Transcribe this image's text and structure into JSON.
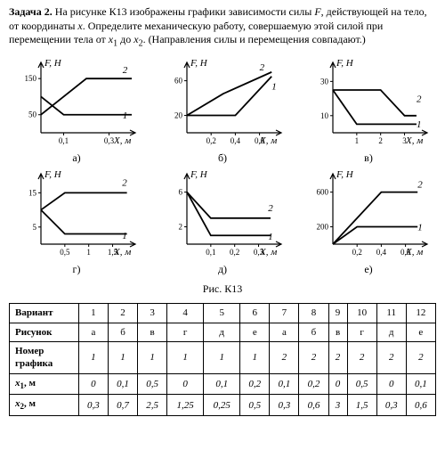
{
  "problem": {
    "heading": "Задача 2.",
    "body_html": "На рисунке К13 изображены графики зависимости силы <i>F</i>, действующей на тело, от координаты <i>x</i>. Определите механическую работу, совершаемую этой силой при перемещении тела от <i>x</i><sub>1</sub> до <i>x</i><sub>2</sub>. (Направления силы и перемещения совпадают.)"
  },
  "fig_caption": "Рис. К13",
  "charts": {
    "axis_y_label": "F, Н",
    "axis_x_label": "X, м",
    "colors": {
      "line": "#000000",
      "bg": "#ffffff"
    },
    "cells": [
      {
        "id": "a",
        "label": "а)",
        "yticks": [
          50,
          150
        ],
        "xticks": [
          "0,1",
          "0,3"
        ],
        "xmax": 0.4,
        "ymax": 180,
        "curves": [
          {
            "num": "1",
            "pts": [
              [
                0,
                100
              ],
              [
                0.1,
                50
              ],
              [
                0.4,
                50
              ]
            ],
            "lab_xy": [
              0.36,
              40
            ]
          },
          {
            "num": "2",
            "pts": [
              [
                0,
                50
              ],
              [
                0.2,
                150
              ],
              [
                0.4,
                150
              ]
            ],
            "lab_xy": [
              0.36,
              165
            ]
          }
        ]
      },
      {
        "id": "b",
        "label": "б)",
        "yticks": [
          20,
          60
        ],
        "xticks": [
          "0,2",
          "0,4",
          "0,6"
        ],
        "xmax": 0.75,
        "ymax": 75,
        "curves": [
          {
            "num": "1",
            "pts": [
              [
                0,
                20
              ],
              [
                0.4,
                20
              ],
              [
                0.7,
                65
              ]
            ],
            "lab_xy": [
              0.7,
              50
            ]
          },
          {
            "num": "2",
            "pts": [
              [
                0,
                20
              ],
              [
                0.3,
                45
              ],
              [
                0.7,
                70
              ]
            ],
            "lab_xy": [
              0.6,
              72
            ]
          }
        ]
      },
      {
        "id": "v",
        "label": "в)",
        "yticks": [
          10,
          30
        ],
        "xticks": [
          "1",
          "2",
          "3"
        ],
        "xmax": 3.8,
        "ymax": 38,
        "curves": [
          {
            "num": "1",
            "pts": [
              [
                0,
                25
              ],
              [
                1,
                5
              ],
              [
                3.5,
                5
              ]
            ],
            "lab_xy": [
              3.5,
              3
            ]
          },
          {
            "num": "2",
            "pts": [
              [
                0,
                25
              ],
              [
                2,
                25
              ],
              [
                3,
                10
              ],
              [
                3.5,
                10
              ]
            ],
            "lab_xy": [
              3.5,
              18
            ]
          }
        ]
      },
      {
        "id": "g",
        "label": "г)",
        "yticks": [
          5,
          15
        ],
        "xticks": [
          "0,5",
          "1",
          "1,5"
        ],
        "xmax": 1.9,
        "ymax": 19,
        "curves": [
          {
            "num": "1",
            "pts": [
              [
                0,
                10
              ],
              [
                0.5,
                3
              ],
              [
                1.8,
                3
              ]
            ],
            "lab_xy": [
              1.7,
              1.5
            ]
          },
          {
            "num": "2",
            "pts": [
              [
                0,
                10
              ],
              [
                0.5,
                15
              ],
              [
                1.8,
                15
              ]
            ],
            "lab_xy": [
              1.7,
              17
            ]
          }
        ]
      },
      {
        "id": "d",
        "label": "д)",
        "yticks": [
          2,
          6
        ],
        "xticks": [
          "0,1",
          "0,2",
          "0,3"
        ],
        "xmax": 0.38,
        "ymax": 7.5,
        "curves": [
          {
            "num": "1",
            "pts": [
              [
                0,
                6
              ],
              [
                0.1,
                1
              ],
              [
                0.35,
                1
              ]
            ],
            "lab_xy": [
              0.34,
              0.5
            ]
          },
          {
            "num": "2",
            "pts": [
              [
                0,
                6
              ],
              [
                0.1,
                3
              ],
              [
                0.25,
                3
              ],
              [
                0.35,
                3
              ]
            ],
            "lab_xy": [
              0.34,
              3.8
            ]
          }
        ]
      },
      {
        "id": "e",
        "label": "е)",
        "yticks": [
          200,
          600
        ],
        "xticks": [
          "0,2",
          "0,4",
          "0,6"
        ],
        "xmax": 0.75,
        "ymax": 750,
        "curves": [
          {
            "num": "1",
            "pts": [
              [
                0,
                0
              ],
              [
                0.2,
                200
              ],
              [
                0.7,
                200
              ]
            ],
            "lab_xy": [
              0.7,
              160
            ]
          },
          {
            "num": "2",
            "pts": [
              [
                0,
                0
              ],
              [
                0.4,
                600
              ],
              [
                0.7,
                600
              ]
            ],
            "lab_xy": [
              0.7,
              650
            ]
          }
        ]
      }
    ]
  },
  "table": {
    "headers": [
      "Вариант",
      "1",
      "2",
      "3",
      "4",
      "5",
      "6",
      "7",
      "8",
      "9",
      "10",
      "11",
      "12"
    ],
    "rows": [
      [
        "Рисунок",
        "а",
        "б",
        "в",
        "г",
        "д",
        "е",
        "а",
        "б",
        "в",
        "г",
        "д",
        "е"
      ],
      [
        "Номер графика",
        "1",
        "1",
        "1",
        "1",
        "1",
        "1",
        "2",
        "2",
        "2",
        "2",
        "2",
        "2"
      ],
      [
        "x1_m",
        "0",
        "0,1",
        "0,5",
        "0",
        "0,1",
        "0,2",
        "0,1",
        "0,2",
        "0",
        "0,5",
        "0",
        "0,1"
      ],
      [
        "x2_m",
        "0,3",
        "0,7",
        "2,5",
        "1,25",
        "0,25",
        "0,5",
        "0,3",
        "0,6",
        "3",
        "1,5",
        "0,3",
        "0,6"
      ]
    ],
    "row_heads_html": {
      "x1_m": "<i>x</i><span class=\"sub\">1</span>, м",
      "x2_m": "<i>x</i><span class=\"sub\">2</span>, м",
      "Номер графика": "Номер<br>графика"
    }
  }
}
